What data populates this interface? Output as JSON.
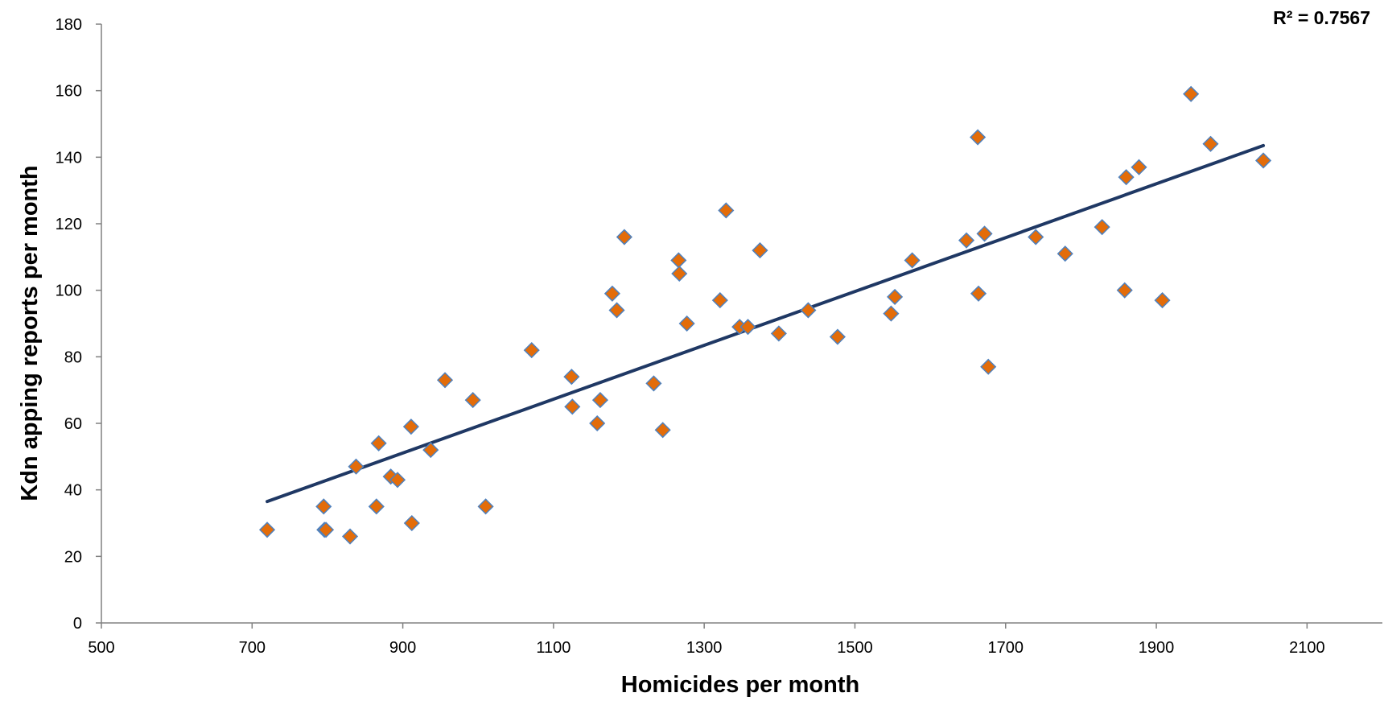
{
  "chart_data": {
    "type": "scatter",
    "title": "",
    "xlabel": "Homicides per month",
    "ylabel": "Kdn apping reports per month",
    "xlim": [
      500,
      2200
    ],
    "ylim": [
      0,
      180
    ],
    "x_ticks": [
      500,
      700,
      900,
      1100,
      1300,
      1500,
      1700,
      1900,
      2100
    ],
    "y_ticks": [
      0,
      20,
      40,
      60,
      80,
      100,
      120,
      140,
      160,
      180
    ],
    "grid": false,
    "legend": "none",
    "annotation": "R² = 0.7567",
    "colors": {
      "marker_fill": "#e36c09",
      "marker_edge": "#4f81bd",
      "trendline": "#1f3864",
      "axis": "#808080"
    },
    "series": [
      {
        "marker": "diamond",
        "points": [
          [
            720,
            28
          ],
          [
            795,
            35
          ],
          [
            796,
            28
          ],
          [
            798,
            28
          ],
          [
            830,
            26
          ],
          [
            838,
            47
          ],
          [
            865,
            35
          ],
          [
            868,
            54
          ],
          [
            884,
            44
          ],
          [
            893,
            43
          ],
          [
            911,
            59
          ],
          [
            912,
            30
          ],
          [
            937,
            52
          ],
          [
            956,
            73
          ],
          [
            993,
            67
          ],
          [
            1010,
            35
          ],
          [
            1071,
            82
          ],
          [
            1124,
            74
          ],
          [
            1125,
            65
          ],
          [
            1158,
            60
          ],
          [
            1162,
            67
          ],
          [
            1178,
            99
          ],
          [
            1184,
            94
          ],
          [
            1194,
            116
          ],
          [
            1233,
            72
          ],
          [
            1245,
            58
          ],
          [
            1266,
            109
          ],
          [
            1267,
            105
          ],
          [
            1277,
            90
          ],
          [
            1321,
            97
          ],
          [
            1329,
            124
          ],
          [
            1347,
            89
          ],
          [
            1358,
            89
          ],
          [
            1374,
            112
          ],
          [
            1399,
            87
          ],
          [
            1438,
            94
          ],
          [
            1477,
            86
          ],
          [
            1548,
            93
          ],
          [
            1553,
            98
          ],
          [
            1576,
            109
          ],
          [
            1648,
            115
          ],
          [
            1663,
            146
          ],
          [
            1664,
            99
          ],
          [
            1672,
            117
          ],
          [
            1677,
            77
          ],
          [
            1740,
            116
          ],
          [
            1779,
            111
          ],
          [
            1828,
            119
          ],
          [
            1858,
            100
          ],
          [
            1860,
            134
          ],
          [
            1877,
            137
          ],
          [
            1908,
            97
          ],
          [
            1946,
            159
          ],
          [
            1972,
            144
          ],
          [
            2042,
            139
          ]
        ]
      }
    ],
    "trendline": {
      "type": "linear",
      "x": [
        720,
        2042
      ],
      "y": [
        36.5,
        143.5
      ]
    }
  }
}
